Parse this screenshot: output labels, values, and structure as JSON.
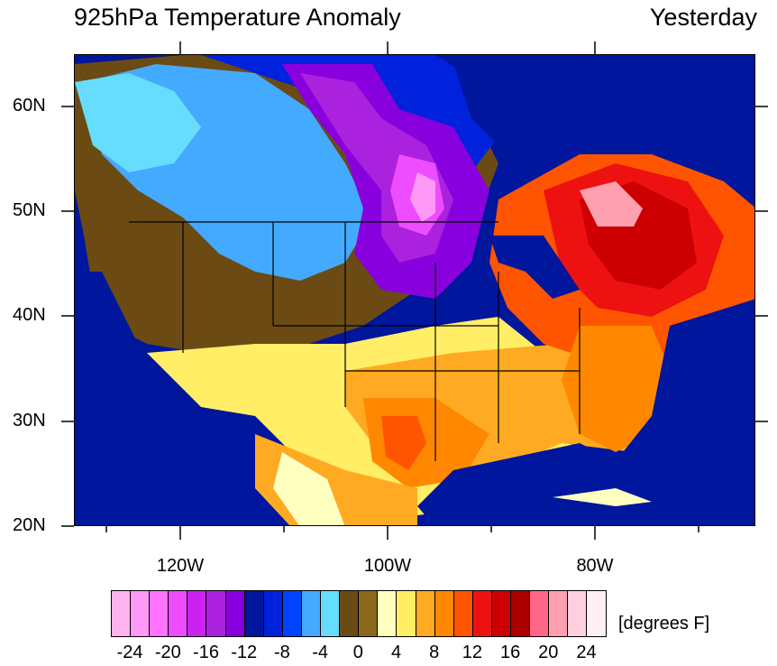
{
  "header": {
    "title": "925hPa Temperature Anomaly",
    "period": "Yesterday"
  },
  "map": {
    "lat_labels": [
      "60N",
      "50N",
      "40N",
      "30N",
      "20N"
    ],
    "lon_labels": [
      "120W",
      "100W",
      "80W"
    ]
  },
  "colorbar": {
    "colors": [
      "#ffb3ee",
      "#ff99f7",
      "#ff73ff",
      "#ee4dff",
      "#cc22ee",
      "#aa22dd",
      "#8800dd",
      "#00169c",
      "#0022dd",
      "#0044ff",
      "#44aaff",
      "#66ddff",
      "#6b4b13",
      "#8a6a1a",
      "#ffffc0",
      "#ffee66",
      "#ffaa22",
      "#ff8800",
      "#ff5500",
      "#ee1111",
      "#cc0000",
      "#aa0000",
      "#ff6688",
      "#ffa0b0",
      "#ffd0dd",
      "#fff0f4"
    ],
    "tick_labels": [
      "-24",
      "-20",
      "-16",
      "-12",
      "-8",
      "-4",
      "0",
      "4",
      "8",
      "12",
      "16",
      "20",
      "24"
    ],
    "unit": "[degrees F]"
  }
}
